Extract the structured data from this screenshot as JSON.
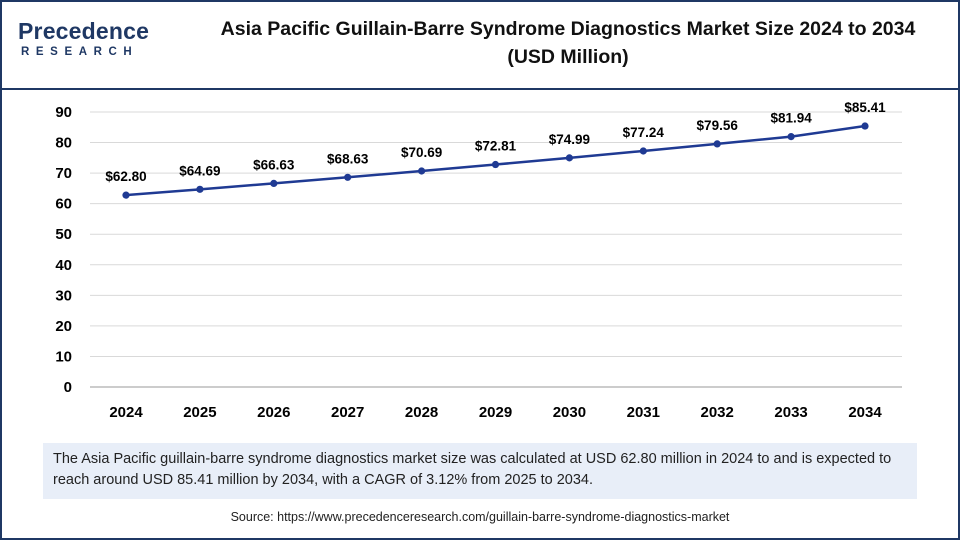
{
  "header": {
    "logo_text": "Precedence",
    "logo_subtext": "RESEARCH",
    "title": "Asia Pacific Guillain-Barre Syndrome Diagnostics Market Size 2024 to 2034",
    "subtitle": "(USD Million)"
  },
  "colors": {
    "line": "#1f3a93",
    "frame": "#1f3864",
    "description_bg": "#e8eef8"
  },
  "chart_data": {
    "type": "line",
    "title": "Asia Pacific Guillain-Barre Syndrome Diagnostics Market Size 2024 to 2034 (USD Million)",
    "xlabel": "",
    "ylabel": "",
    "categories": [
      "2024",
      "2025",
      "2026",
      "2027",
      "2028",
      "2029",
      "2030",
      "2031",
      "2032",
      "2033",
      "2034"
    ],
    "series": [
      {
        "values": [
          62.8,
          64.69,
          66.63,
          68.63,
          70.69,
          72.81,
          74.99,
          77.24,
          79.56,
          81.94,
          85.41
        ],
        "labels": [
          "$62.80",
          "$64.69",
          "$66.63",
          "$68.63",
          "$70.69",
          "$72.81",
          "$74.99",
          "$77.24",
          "$79.56",
          "$81.94",
          "$85.41"
        ]
      }
    ],
    "ylim": [
      0,
      90
    ],
    "yticks": [
      0,
      10,
      20,
      30,
      40,
      50,
      60,
      70,
      80,
      90
    ],
    "grid": "horizontal",
    "legend": "none"
  },
  "description": "The Asia Pacific guillain-barre syndrome diagnostics market size was calculated at USD 62.80 million in 2024 to and is expected to reach around USD 85.41 million by 2034, with a CAGR of 3.12% from 2025 to 2034.",
  "source": "Source: https://www.precedenceresearch.com/guillain-barre-syndrome-diagnostics-market"
}
